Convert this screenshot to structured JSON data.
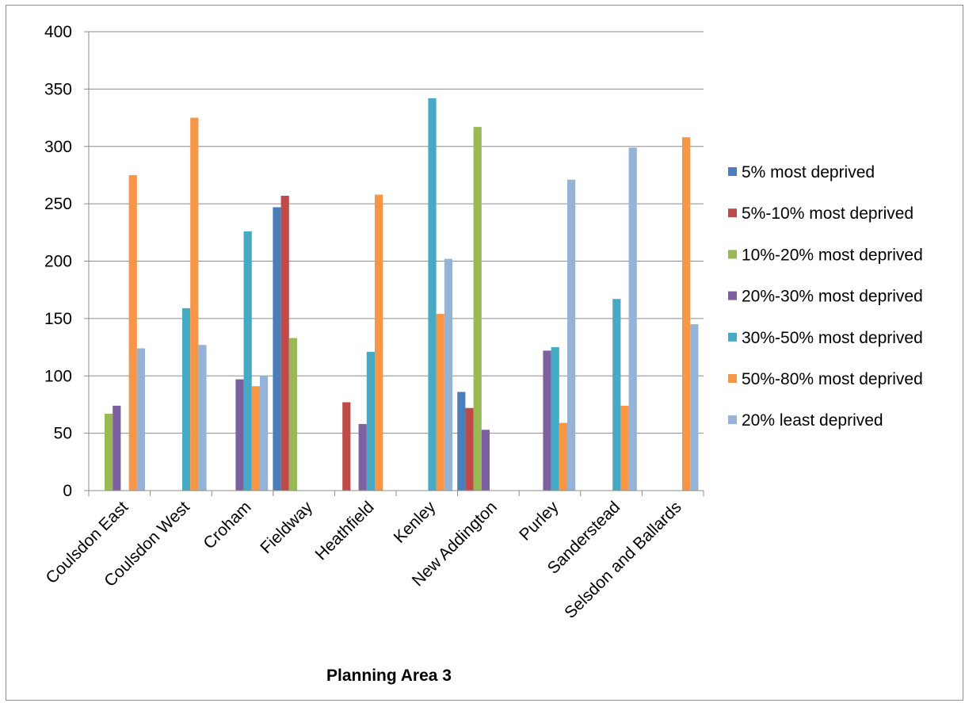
{
  "chart_data": {
    "type": "bar",
    "title": "",
    "xlabel": "Planning Area 3",
    "ylabel": "",
    "ylim": [
      0,
      400
    ],
    "yticks": [
      0,
      50,
      100,
      150,
      200,
      250,
      300,
      350,
      400
    ],
    "grid": "horizontal",
    "legend_position": "right",
    "categories": [
      "Coulsdon East",
      "Coulsdon West",
      "Croham",
      "Fieldway",
      "Heathfield",
      "Kenley",
      "New Addington",
      "Purley",
      "Sanderstead",
      "Selsdon and Ballards"
    ],
    "series": [
      {
        "name": "5% most deprived",
        "color": "#4a7ebb",
        "values": [
          0,
          0,
          0,
          247,
          0,
          0,
          86,
          0,
          0,
          0
        ]
      },
      {
        "name": "5%-10% most deprived",
        "color": "#be4b48",
        "values": [
          0,
          0,
          0,
          257,
          77,
          0,
          72,
          0,
          0,
          0
        ]
      },
      {
        "name": "10%-20% most deprived",
        "color": "#98b954",
        "values": [
          67,
          0,
          0,
          133,
          0,
          0,
          317,
          0,
          0,
          0
        ]
      },
      {
        "name": "20%-30% most deprived",
        "color": "#7d60a0",
        "values": [
          74,
          0,
          97,
          0,
          58,
          0,
          53,
          122,
          0,
          0
        ]
      },
      {
        "name": "30%-50% most deprived",
        "color": "#46aac5",
        "values": [
          0,
          159,
          226,
          0,
          121,
          342,
          0,
          125,
          167,
          0
        ]
      },
      {
        "name": "50%-80% most deprived",
        "color": "#f79646",
        "values": [
          275,
          325,
          91,
          0,
          258,
          154,
          0,
          59,
          74,
          308
        ]
      },
      {
        "name": "20% least deprived",
        "color": "#95b3d7",
        "values": [
          124,
          127,
          100,
          0,
          0,
          202,
          0,
          271,
          299,
          145
        ]
      }
    ]
  }
}
